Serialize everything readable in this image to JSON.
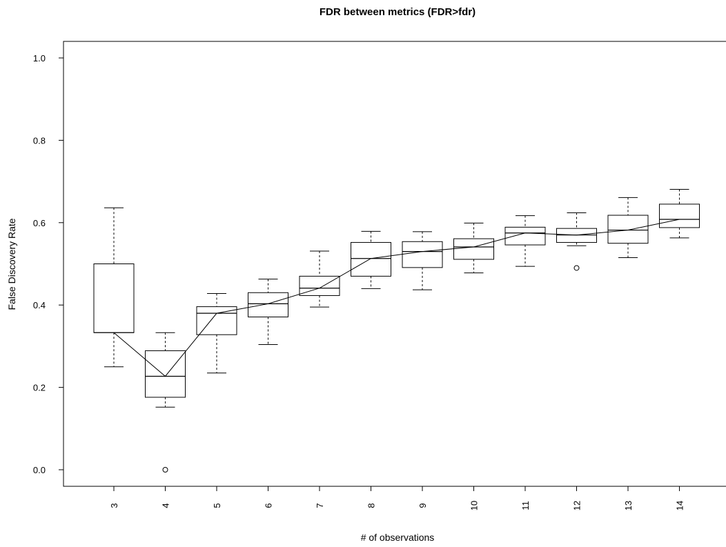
{
  "chart_data": {
    "type": "box",
    "title": "FDR between metrics (FDR>fdr)",
    "xlabel": "# of observations",
    "ylabel": "False Discovery Rate",
    "ylim": [
      0.0,
      1.0
    ],
    "y_ticks": [
      "0.0",
      "0.2",
      "0.4",
      "0.6",
      "0.8",
      "1.0"
    ],
    "categories": [
      "3",
      "4",
      "5",
      "6",
      "7",
      "8",
      "9",
      "10",
      "11",
      "12",
      "13",
      "14"
    ],
    "boxes": [
      {
        "x": "3",
        "whisker_low": 0.25,
        "q1": 0.333,
        "median": 0.333,
        "q3": 0.5,
        "whisker_high": 0.636,
        "outliers": []
      },
      {
        "x": "4",
        "whisker_low": 0.152,
        "q1": 0.176,
        "median": 0.227,
        "q3": 0.289,
        "whisker_high": 0.333,
        "outliers": [
          0.0
        ]
      },
      {
        "x": "5",
        "whisker_low": 0.235,
        "q1": 0.328,
        "median": 0.38,
        "q3": 0.396,
        "whisker_high": 0.428,
        "outliers": []
      },
      {
        "x": "6",
        "whisker_low": 0.304,
        "q1": 0.371,
        "median": 0.403,
        "q3": 0.43,
        "whisker_high": 0.463,
        "outliers": []
      },
      {
        "x": "7",
        "whisker_low": 0.395,
        "q1": 0.423,
        "median": 0.441,
        "q3": 0.47,
        "whisker_high": 0.531,
        "outliers": []
      },
      {
        "x": "8",
        "whisker_low": 0.44,
        "q1": 0.47,
        "median": 0.513,
        "q3": 0.552,
        "whisker_high": 0.579,
        "outliers": []
      },
      {
        "x": "9",
        "whisker_low": 0.437,
        "q1": 0.491,
        "median": 0.53,
        "q3": 0.554,
        "whisker_high": 0.578,
        "outliers": []
      },
      {
        "x": "10",
        "whisker_low": 0.478,
        "q1": 0.511,
        "median": 0.541,
        "q3": 0.561,
        "whisker_high": 0.599,
        "outliers": []
      },
      {
        "x": "11",
        "whisker_low": 0.494,
        "q1": 0.546,
        "median": 0.575,
        "q3": 0.589,
        "whisker_high": 0.617,
        "outliers": []
      },
      {
        "x": "12",
        "whisker_low": 0.544,
        "q1": 0.552,
        "median": 0.57,
        "q3": 0.586,
        "whisker_high": 0.624,
        "outliers": [
          0.49
        ]
      },
      {
        "x": "13",
        "whisker_low": 0.515,
        "q1": 0.55,
        "median": 0.582,
        "q3": 0.618,
        "whisker_high": 0.661,
        "outliers": []
      },
      {
        "x": "14",
        "whisker_low": 0.563,
        "q1": 0.588,
        "median": 0.608,
        "q3": 0.645,
        "whisker_high": 0.681,
        "outliers": []
      }
    ],
    "median_line": true,
    "grid": false,
    "colors": {
      "stroke": "#000000",
      "background": "#ffffff"
    }
  }
}
